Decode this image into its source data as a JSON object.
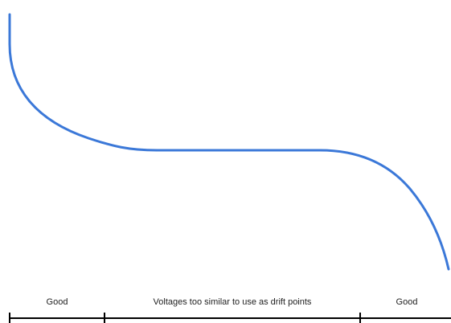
{
  "colors": {
    "curve": "#3b78d8",
    "scale_line": "#000000",
    "label_text": "#222222",
    "background": "#ffffff"
  },
  "scale": {
    "segments": [
      {
        "label": "Good"
      },
      {
        "label": "Voltages too similar to use as drift points"
      },
      {
        "label": "Good"
      }
    ]
  }
}
